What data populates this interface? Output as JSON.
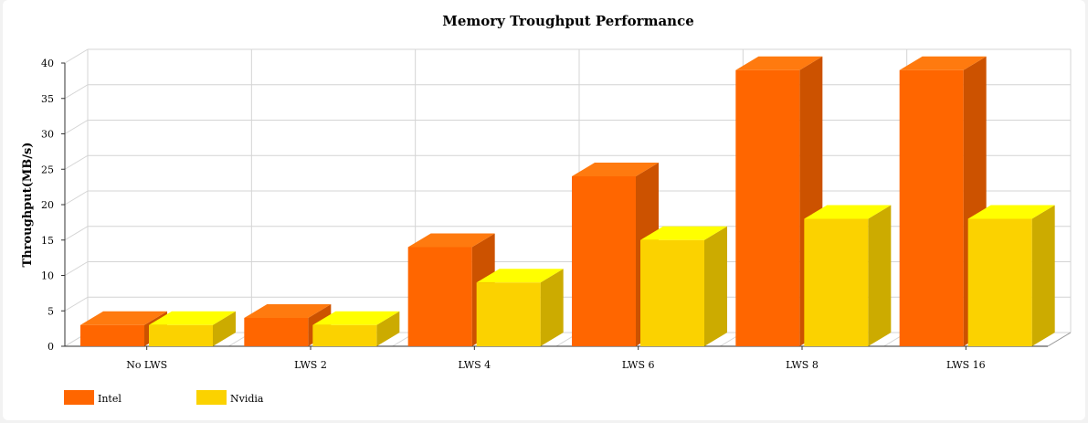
{
  "chart_data": {
    "type": "bar",
    "title": "Memory Troughput Performance",
    "xlabel": "",
    "ylabel": "Throughput(MB/s)",
    "categories": [
      "No LWS",
      "LWS 2",
      "LWS 4",
      "LWS 6",
      "LWS 8",
      "LWS 16"
    ],
    "series": [
      {
        "name": "Intel",
        "values": [
          3,
          4,
          14,
          24,
          39,
          39
        ]
      },
      {
        "name": "Nvidia",
        "values": [
          3,
          3,
          9,
          15,
          18,
          18
        ]
      }
    ],
    "ylim": [
      0,
      40
    ],
    "yticks": [
      0,
      5,
      10,
      15,
      20,
      25,
      30,
      35,
      40
    ],
    "grid": true,
    "style": "3d",
    "legend": "bottom-left",
    "colors": {
      "Intel": {
        "front": "#ff6600",
        "top": "#ff7a0f",
        "side": "#cc5200"
      },
      "Nvidia": {
        "front": "#fbd200",
        "top": "#ffff00",
        "side": "#ccab00"
      }
    }
  }
}
